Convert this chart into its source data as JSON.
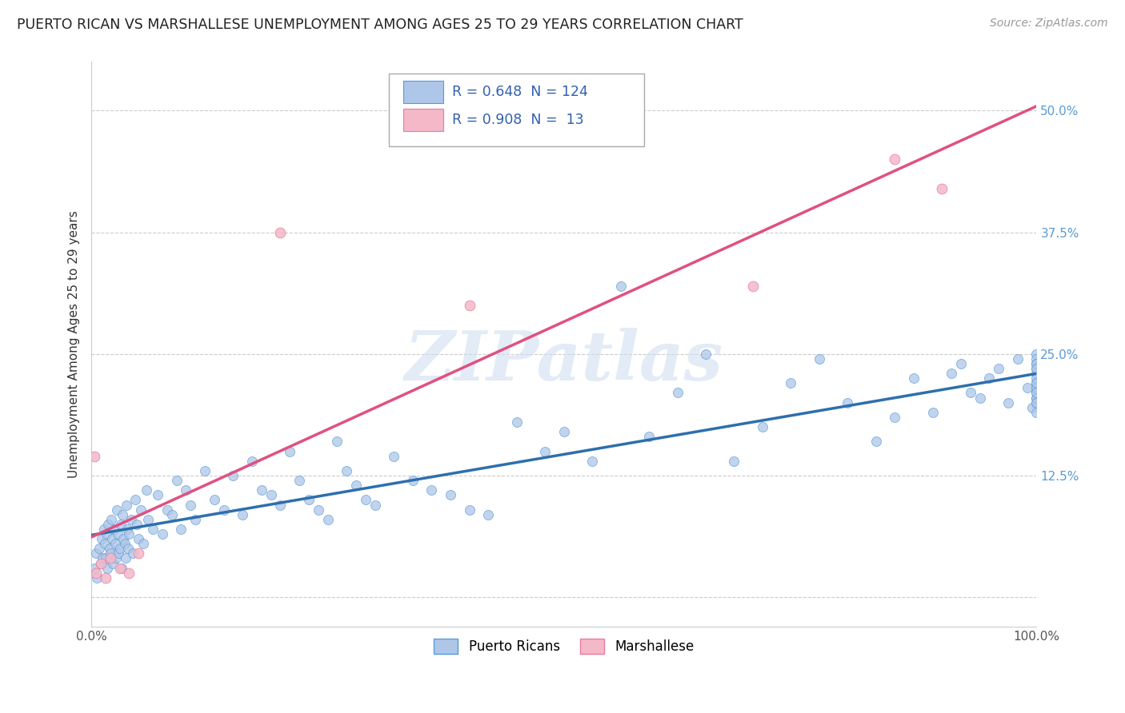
{
  "title": "PUERTO RICAN VS MARSHALLESE UNEMPLOYMENT AMONG AGES 25 TO 29 YEARS CORRELATION CHART",
  "source": "Source: ZipAtlas.com",
  "ylabel_label": "Unemployment Among Ages 25 to 29 years",
  "xlim": [
    0.0,
    100.0
  ],
  "ylim": [
    -3.0,
    55.0
  ],
  "yticks": [
    0.0,
    12.5,
    25.0,
    37.5,
    50.0
  ],
  "ytick_labels": [
    "",
    "12.5%",
    "25.0%",
    "37.5%",
    "50.0%"
  ],
  "r_blue": 0.648,
  "n_blue": 124,
  "r_pink": 0.908,
  "n_pink": 13,
  "blue_color": "#aec6e8",
  "blue_edge": "#5b9bd5",
  "pink_color": "#f4b8c8",
  "pink_edge": "#e87ca0",
  "trend_blue": "#2e6fad",
  "trend_pink": "#e05080",
  "legend_label_blue": "Puerto Ricans",
  "legend_label_pink": "Marshallese",
  "watermark_text": "ZIPatlas",
  "background_color": "#ffffff",
  "grid_color": "#cccccc",
  "title_color": "#222222",
  "blue_pts_x": [
    0.3,
    0.5,
    0.6,
    0.8,
    1.0,
    1.1,
    1.2,
    1.3,
    1.4,
    1.5,
    1.6,
    1.7,
    1.8,
    1.9,
    2.0,
    2.1,
    2.2,
    2.3,
    2.4,
    2.5,
    2.6,
    2.7,
    2.8,
    2.9,
    3.0,
    3.1,
    3.2,
    3.3,
    3.4,
    3.5,
    3.6,
    3.7,
    3.8,
    3.9,
    4.0,
    4.2,
    4.4,
    4.6,
    4.8,
    5.0,
    5.2,
    5.5,
    5.8,
    6.0,
    6.5,
    7.0,
    7.5,
    8.0,
    8.5,
    9.0,
    9.5,
    10.0,
    10.5,
    11.0,
    12.0,
    13.0,
    14.0,
    15.0,
    16.0,
    17.0,
    18.0,
    19.0,
    20.0,
    21.0,
    22.0,
    23.0,
    24.0,
    25.0,
    26.0,
    27.0,
    28.0,
    29.0,
    30.0,
    32.0,
    34.0,
    36.0,
    38.0,
    40.0,
    42.0,
    45.0,
    48.0,
    50.0,
    53.0,
    56.0,
    59.0,
    62.0,
    65.0,
    68.0,
    71.0,
    74.0,
    77.0,
    80.0,
    83.0,
    85.0,
    87.0,
    89.0,
    91.0,
    92.0,
    93.0,
    94.0,
    95.0,
    96.0,
    97.0,
    98.0,
    99.0,
    99.5,
    100.0,
    100.0,
    100.0,
    100.0,
    100.0,
    100.0,
    100.0,
    100.0,
    100.0,
    100.0,
    100.0,
    100.0,
    100.0,
    100.0,
    100.0,
    100.0,
    100.0,
    100.0
  ],
  "blue_pts_y": [
    3.0,
    4.5,
    2.0,
    5.0,
    3.5,
    6.0,
    4.0,
    7.0,
    5.5,
    4.0,
    6.5,
    3.0,
    7.5,
    5.0,
    4.5,
    8.0,
    6.0,
    3.5,
    7.0,
    5.5,
    4.0,
    9.0,
    6.5,
    4.5,
    5.0,
    7.5,
    3.0,
    8.5,
    6.0,
    5.5,
    4.0,
    9.5,
    7.0,
    5.0,
    6.5,
    8.0,
    4.5,
    10.0,
    7.5,
    6.0,
    9.0,
    5.5,
    11.0,
    8.0,
    7.0,
    10.5,
    6.5,
    9.0,
    8.5,
    12.0,
    7.0,
    11.0,
    9.5,
    8.0,
    13.0,
    10.0,
    9.0,
    12.5,
    8.5,
    14.0,
    11.0,
    10.5,
    9.5,
    15.0,
    12.0,
    10.0,
    9.0,
    8.0,
    16.0,
    13.0,
    11.5,
    10.0,
    9.5,
    14.5,
    12.0,
    11.0,
    10.5,
    9.0,
    8.5,
    18.0,
    15.0,
    17.0,
    14.0,
    32.0,
    16.5,
    21.0,
    25.0,
    14.0,
    17.5,
    22.0,
    24.5,
    20.0,
    16.0,
    18.5,
    22.5,
    19.0,
    23.0,
    24.0,
    21.0,
    20.5,
    22.5,
    23.5,
    20.0,
    24.5,
    21.5,
    19.5,
    25.0,
    22.0,
    20.5,
    23.0,
    24.5,
    21.0,
    20.0,
    22.5,
    23.5,
    24.0,
    20.5,
    21.5,
    19.0,
    22.0,
    24.0,
    23.5,
    21.0,
    20.0
  ],
  "pink_pts_x": [
    0.3,
    0.5,
    1.0,
    1.5,
    2.0,
    3.0,
    4.0,
    5.0,
    20.0,
    40.0,
    70.0,
    85.0,
    90.0
  ],
  "pink_pts_y": [
    14.5,
    2.5,
    3.5,
    2.0,
    4.0,
    3.0,
    2.5,
    4.5,
    37.5,
    30.0,
    32.0,
    45.0,
    42.0
  ]
}
